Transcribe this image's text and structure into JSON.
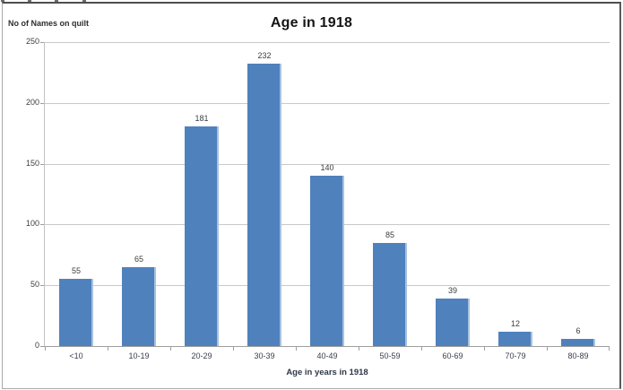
{
  "chart_data": {
    "type": "bar",
    "title": "Age in 1918",
    "ylabel": "No of Names on quilt",
    "xlabel": "Age in years in 1918",
    "categories": [
      "<10",
      "10-19",
      "20-29",
      "30-39",
      "40-49",
      "50-59",
      "60-69",
      "70-79",
      "80-89"
    ],
    "values": [
      55,
      65,
      181,
      232,
      140,
      85,
      39,
      12,
      6
    ],
    "ylim": [
      0,
      250
    ],
    "yticks": [
      0,
      50,
      100,
      150,
      200,
      250
    ],
    "grid": true,
    "legend": "none",
    "data_labels": true,
    "colors": {
      "bar_fill": "#4f81bd",
      "bar_edge": "#a9c2df",
      "gridline": "#c9c9c9",
      "axis_line": "#9f9f9f",
      "text": "#3d3d3d",
      "title_text": "#141414"
    }
  }
}
